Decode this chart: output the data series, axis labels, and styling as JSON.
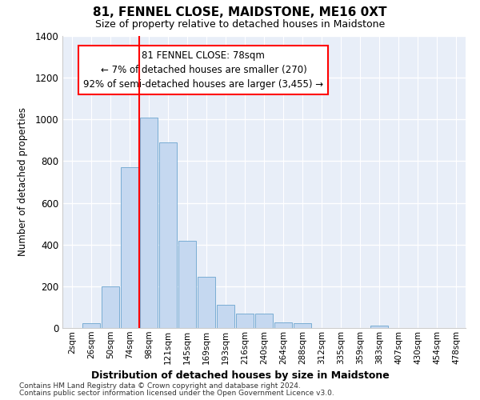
{
  "title": "81, FENNEL CLOSE, MAIDSTONE, ME16 0XT",
  "subtitle": "Size of property relative to detached houses in Maidstone",
  "xlabel": "Distribution of detached houses by size in Maidstone",
  "ylabel": "Number of detached properties",
  "categories": [
    "2sqm",
    "26sqm",
    "50sqm",
    "74sqm",
    "98sqm",
    "121sqm",
    "145sqm",
    "169sqm",
    "193sqm",
    "216sqm",
    "240sqm",
    "264sqm",
    "288sqm",
    "312sqm",
    "335sqm",
    "359sqm",
    "383sqm",
    "407sqm",
    "430sqm",
    "454sqm",
    "478sqm"
  ],
  "values": [
    0,
    22,
    200,
    770,
    1010,
    890,
    420,
    245,
    110,
    70,
    70,
    28,
    22,
    0,
    0,
    0,
    12,
    0,
    0,
    0,
    0
  ],
  "bar_color": "#c5d8f0",
  "bar_edge_color": "#7aadd4",
  "background_color": "#e8eef8",
  "grid_color": "#ffffff",
  "annotation_text": "81 FENNEL CLOSE: 78sqm\n← 7% of detached houses are smaller (270)\n92% of semi-detached houses are larger (3,455) →",
  "red_line_index": 3,
  "ylim": [
    0,
    1400
  ],
  "yticks": [
    0,
    200,
    400,
    600,
    800,
    1000,
    1200,
    1400
  ],
  "footnote1": "Contains HM Land Registry data © Crown copyright and database right 2024.",
  "footnote2": "Contains public sector information licensed under the Open Government Licence v3.0."
}
